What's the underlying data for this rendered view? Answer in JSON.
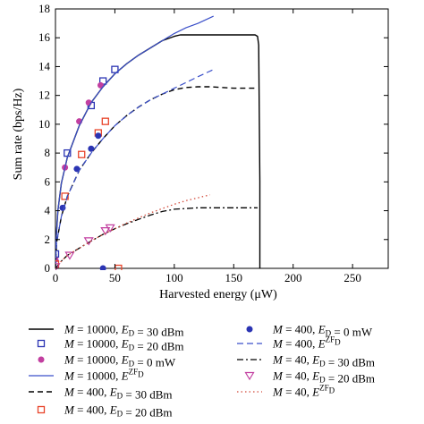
{
  "chart_data": {
    "type": "line",
    "xlabel": "Harvested energy (μW)",
    "ylabel": "Sum rate (bps/Hz)",
    "xlim": [
      0,
      280
    ],
    "ylim": [
      0,
      18
    ],
    "xticks": [
      "0",
      "50",
      "100",
      "150",
      "200",
      "250"
    ],
    "xtick_values": [
      0,
      50,
      100,
      150,
      200,
      250
    ],
    "yticks": [
      "0",
      "2",
      "4",
      "6",
      "8",
      "10",
      "12",
      "14",
      "16",
      "18"
    ],
    "ytick_values": [
      0,
      2,
      4,
      6,
      8,
      10,
      12,
      14,
      16,
      18
    ],
    "grid": false,
    "legend_position": "below",
    "series": [
      {
        "label_parts": [
          {
            "t": "M",
            "i": true
          },
          {
            "t": " = 10000, "
          },
          {
            "t": "E",
            "i": true
          },
          {
            "t": "D",
            "sub": true
          },
          {
            "t": " = 30 dBm"
          }
        ],
        "legend_col": 0,
        "legend_row": 0,
        "marker": "none",
        "dash": "solid",
        "color": "#000000",
        "width": 1.4,
        "x": [
          0,
          0.5,
          2,
          5,
          10,
          20,
          30,
          40,
          50,
          60,
          70,
          80,
          90,
          100,
          105,
          120,
          140,
          160,
          168,
          170,
          171,
          172,
          172
        ],
        "y": [
          0,
          2,
          4,
          5.9,
          7.7,
          9.9,
          11.5,
          12.6,
          13.5,
          14.2,
          14.8,
          15.3,
          15.8,
          16.1,
          16.2,
          16.2,
          16.2,
          16.2,
          16.2,
          16.1,
          15.5,
          6,
          0
        ]
      },
      {
        "label_parts": [
          {
            "t": "M",
            "i": true
          },
          {
            "t": " = 10000, "
          },
          {
            "t": "E",
            "i": true
          },
          {
            "t": "D",
            "sub": true
          },
          {
            "t": " = 20 dBm"
          }
        ],
        "legend_col": 0,
        "legend_row": 1,
        "marker": "square",
        "line": false,
        "color": "#2b34b3",
        "x": [
          0,
          10,
          30,
          40,
          50
        ],
        "y": [
          1.0,
          8.0,
          11.3,
          13.0,
          13.8
        ]
      },
      {
        "label_parts": [
          {
            "t": "M",
            "i": true
          },
          {
            "t": " = 10000, "
          },
          {
            "t": "E",
            "i": true
          },
          {
            "t": "D",
            "sub": true
          },
          {
            "t": " = 0 mW"
          }
        ],
        "legend_col": 0,
        "legend_row": 2,
        "marker": "circle",
        "line": false,
        "color": "#c23fa0",
        "x": [
          0,
          8,
          20,
          28,
          38
        ],
        "y": [
          0.6,
          7.0,
          10.2,
          11.5,
          12.7
        ]
      },
      {
        "label_parts": [
          {
            "t": "M",
            "i": true
          },
          {
            "t": " = 10000, "
          },
          {
            "t": "E",
            "i": true
          },
          {
            "t": "ZF",
            "sup": true
          },
          {
            "t": "D",
            "sub": true
          }
        ],
        "legend_col": 0,
        "legend_row": 3,
        "marker": "none",
        "dash": "solid",
        "color": "#3a4fc9",
        "width": 1.2,
        "x": [
          0,
          0.5,
          2,
          5,
          10,
          20,
          30,
          40,
          50,
          60,
          70,
          80,
          90,
          100,
          110,
          120,
          133
        ],
        "y": [
          0,
          2,
          4,
          5.9,
          7.7,
          9.9,
          11.5,
          12.6,
          13.5,
          14.2,
          14.8,
          15.3,
          15.8,
          16.3,
          16.7,
          17.0,
          17.5
        ]
      },
      {
        "label_parts": [
          {
            "t": "M",
            "i": true
          },
          {
            "t": " = 400, "
          },
          {
            "t": "E",
            "i": true
          },
          {
            "t": "D",
            "sub": true
          },
          {
            "t": " = 30 dBm"
          }
        ],
        "legend_col": 0,
        "legend_row": 4,
        "marker": "none",
        "dash": "6,4",
        "color": "#000000",
        "width": 1.4,
        "x": [
          0,
          1,
          5,
          10,
          20,
          30,
          40,
          50,
          60,
          70,
          80,
          90,
          100,
          110,
          120,
          130,
          140,
          150,
          160,
          170
        ],
        "y": [
          0,
          1.8,
          3.6,
          5.0,
          6.8,
          8.0,
          9.0,
          9.9,
          10.6,
          11.2,
          11.7,
          12.1,
          12.4,
          12.55,
          12.6,
          12.6,
          12.55,
          12.5,
          12.5,
          12.5
        ]
      },
      {
        "label_parts": [
          {
            "t": "M",
            "i": true
          },
          {
            "t": " = 400, "
          },
          {
            "t": "E",
            "i": true
          },
          {
            "t": "D",
            "sub": true
          },
          {
            "t": " = 20 dBm"
          }
        ],
        "legend_col": 0,
        "legend_row": 5,
        "marker": "square",
        "line": false,
        "color": "#e8442a",
        "x": [
          0,
          8,
          22,
          36,
          42,
          53
        ],
        "y": [
          0.3,
          5.0,
          7.9,
          9.4,
          10.2,
          0
        ]
      },
      {
        "label_parts": [
          {
            "t": "M",
            "i": true
          },
          {
            "t": " = 400, "
          },
          {
            "t": "E",
            "i": true
          },
          {
            "t": "D",
            "sub": true
          },
          {
            "t": " = 0 mW"
          }
        ],
        "legend_col": 1,
        "legend_row": 0,
        "marker": "circle",
        "line": false,
        "color": "#2b34b3",
        "x": [
          6,
          18,
          30,
          36,
          40
        ],
        "y": [
          4.2,
          6.9,
          8.3,
          9.2,
          0
        ]
      },
      {
        "label_parts": [
          {
            "t": "M",
            "i": true
          },
          {
            "t": " = 400, "
          },
          {
            "t": "E",
            "i": true
          },
          {
            "t": "ZF",
            "sup": true
          },
          {
            "t": "D",
            "sub": true
          }
        ],
        "legend_col": 1,
        "legend_row": 1,
        "marker": "none",
        "dash": "7,4",
        "color": "#3a4fc9",
        "width": 1.2,
        "x": [
          0,
          1,
          5,
          10,
          20,
          30,
          40,
          50,
          60,
          70,
          80,
          90,
          100,
          110,
          120,
          133
        ],
        "y": [
          0,
          1.8,
          3.6,
          5.0,
          6.8,
          8.0,
          9.0,
          9.9,
          10.6,
          11.2,
          11.7,
          12.1,
          12.5,
          12.9,
          13.3,
          13.8
        ]
      },
      {
        "label_parts": [
          {
            "t": "M",
            "i": true
          },
          {
            "t": " = 40, "
          },
          {
            "t": "E",
            "i": true
          },
          {
            "t": "D",
            "sub": true
          },
          {
            "t": " = 30 dBm"
          }
        ],
        "legend_col": 1,
        "legend_row": 2,
        "marker": "none",
        "dash": "7,3,2,3",
        "color": "#000000",
        "width": 1.3,
        "x": [
          0,
          5,
          10,
          20,
          30,
          40,
          50,
          60,
          70,
          80,
          90,
          100,
          110,
          120,
          130,
          140,
          150,
          160,
          170
        ],
        "y": [
          0,
          0.5,
          0.9,
          1.4,
          1.9,
          2.35,
          2.75,
          3.1,
          3.4,
          3.7,
          3.95,
          4.1,
          4.15,
          4.2,
          4.2,
          4.2,
          4.2,
          4.2,
          4.2
        ]
      },
      {
        "label_parts": [
          {
            "t": "M",
            "i": true
          },
          {
            "t": " = 40, "
          },
          {
            "t": "E",
            "i": true
          },
          {
            "t": "D",
            "sub": true
          },
          {
            "t": " = 20 dBm"
          }
        ],
        "legend_col": 1,
        "legend_row": 3,
        "marker": "triangle",
        "line": false,
        "color": "#c23fa0",
        "x": [
          0,
          12,
          28,
          42,
          46
        ],
        "y": [
          0.1,
          0.9,
          1.9,
          2.6,
          2.8
        ]
      },
      {
        "label_parts": [
          {
            "t": "M",
            "i": true
          },
          {
            "t": " = 40, "
          },
          {
            "t": "E",
            "i": true
          },
          {
            "t": "ZF",
            "sup": true
          },
          {
            "t": "D",
            "sub": true
          }
        ],
        "legend_col": 1,
        "legend_row": 4,
        "marker": "none",
        "dash": "1.5,3",
        "color": "#d24a3a",
        "width": 1.3,
        "x": [
          0,
          5,
          10,
          20,
          30,
          40,
          50,
          60,
          70,
          80,
          90,
          100,
          110,
          120,
          130
        ],
        "y": [
          0,
          0.5,
          0.9,
          1.4,
          1.9,
          2.35,
          2.75,
          3.15,
          3.5,
          3.85,
          4.15,
          4.45,
          4.7,
          4.9,
          5.1
        ]
      }
    ]
  }
}
